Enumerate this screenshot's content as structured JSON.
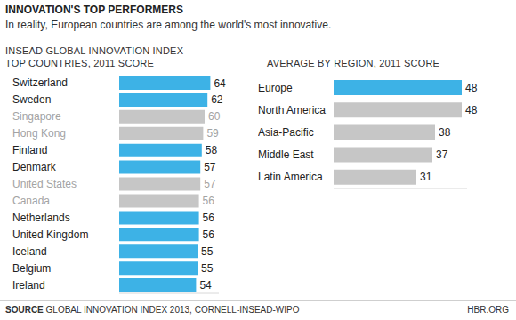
{
  "header": {
    "title": "INNOVATION'S TOP PERFORMERS",
    "subtitle": "In reality, European countries are among the world's most innovative."
  },
  "footer": {
    "source_label": "SOURCE",
    "source": "GLOBAL INNOVATION INDEX 2013, CORNELL-INSEAD-WIPO",
    "credit": "HBR.ORG"
  },
  "chart_data": [
    {
      "type": "bar",
      "title": "INSEAD GLOBAL INNOVATION INDEX",
      "subtitle": "TOP COUNTRIES, 2011 SCORE",
      "orientation": "horizontal",
      "data_labels": true,
      "tick_labels": "y",
      "grid": false,
      "categories": [
        "Switzerland",
        "Sweden",
        "Singapore",
        "Hong Kong",
        "Finland",
        "Denmark",
        "United States",
        "Canada",
        "Netherlands",
        "United Kingdom",
        "Iceland",
        "Belgium",
        "Ireland"
      ],
      "values": [
        64,
        62,
        60,
        59,
        58,
        57,
        57,
        56,
        56,
        56,
        55,
        55,
        54
      ],
      "colors": [
        "#3db2e6",
        "#3db2e6",
        "#c6c6c6",
        "#c6c6c6",
        "#3db2e6",
        "#3db2e6",
        "#c6c6c6",
        "#c6c6c6",
        "#3db2e6",
        "#3db2e6",
        "#3db2e6",
        "#3db2e6",
        "#3db2e6"
      ],
      "xlim": [
        0,
        70
      ]
    },
    {
      "type": "bar",
      "title": "AVERAGE BY REGION, 2011 SCORE",
      "orientation": "horizontal",
      "data_labels": true,
      "tick_labels": "y",
      "grid": false,
      "categories": [
        "Europe",
        "North America",
        "Asia-Pacific",
        "Middle East",
        "Latin America"
      ],
      "values": [
        48,
        48,
        38,
        37,
        31
      ],
      "colors": [
        "#3db2e6",
        "#c6c6c6",
        "#c6c6c6",
        "#c6c6c6",
        "#c6c6c6"
      ],
      "xlim": [
        0,
        50
      ]
    }
  ]
}
